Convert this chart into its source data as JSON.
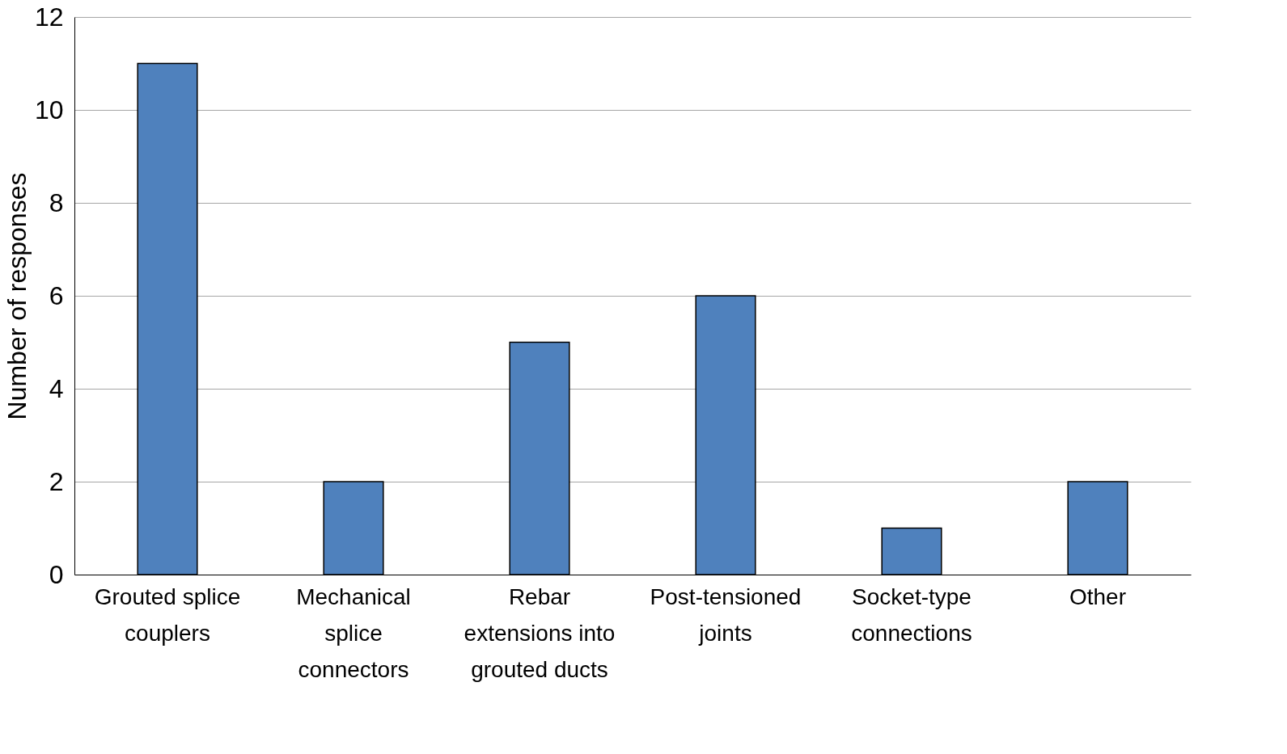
{
  "chart_data": {
    "type": "bar",
    "ylabel": "Number of responses",
    "categories": [
      "Grouted splice couplers",
      "Mechanical splice connectors",
      "Rebar extensions into grouted ducts",
      "Post-tensioned joints",
      "Socket-type connections",
      "Other"
    ],
    "values": [
      11,
      2,
      5,
      6,
      1,
      2
    ],
    "color": "#4f81bd",
    "ylim": [
      0,
      12
    ],
    "yticks": [
      0,
      2,
      4,
      6,
      8,
      10,
      12
    ],
    "grid": "y"
  }
}
